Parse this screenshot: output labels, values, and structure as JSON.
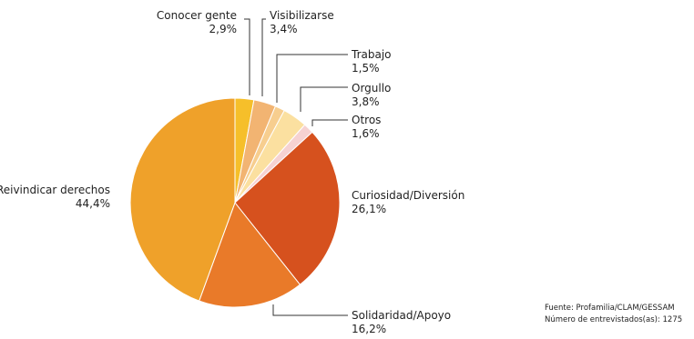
{
  "chart_data": {
    "type": "pie",
    "start_angle_deg": -90,
    "direction": "clockwise",
    "slices": [
      {
        "label": "Conocer gente",
        "value_text": "2,9%",
        "value": 2.9,
        "color": "#F6BF2A"
      },
      {
        "label": "Visibilizarse",
        "value_text": "3,4%",
        "value": 3.4,
        "color": "#F2B472"
      },
      {
        "label": "Trabajo",
        "value_text": "1,5%",
        "value": 1.5,
        "color": "#F7CE8F"
      },
      {
        "label": "Orgullo",
        "value_text": "3,8%",
        "value": 3.8,
        "color": "#FBE0A0"
      },
      {
        "label": "Otros",
        "value_text": "1,6%",
        "value": 1.6,
        "color": "#F6D2D2"
      },
      {
        "label": "Curiosidad/Diversión",
        "value_text": "26,1%",
        "value": 26.1,
        "color": "#D6511E"
      },
      {
        "label": "Solidaridad/Apoyo",
        "value_text": "16,2%",
        "value": 16.2,
        "color": "#E97A29"
      },
      {
        "label": "Reivindicar derechos",
        "value_text": "44,4%",
        "value": 44.4,
        "color": "#EFA12A"
      }
    ]
  },
  "source": {
    "line1": "Fuente: Profamilia/CLAM/GESSAM",
    "line2": "Número de entrevistados(as): 1275"
  }
}
